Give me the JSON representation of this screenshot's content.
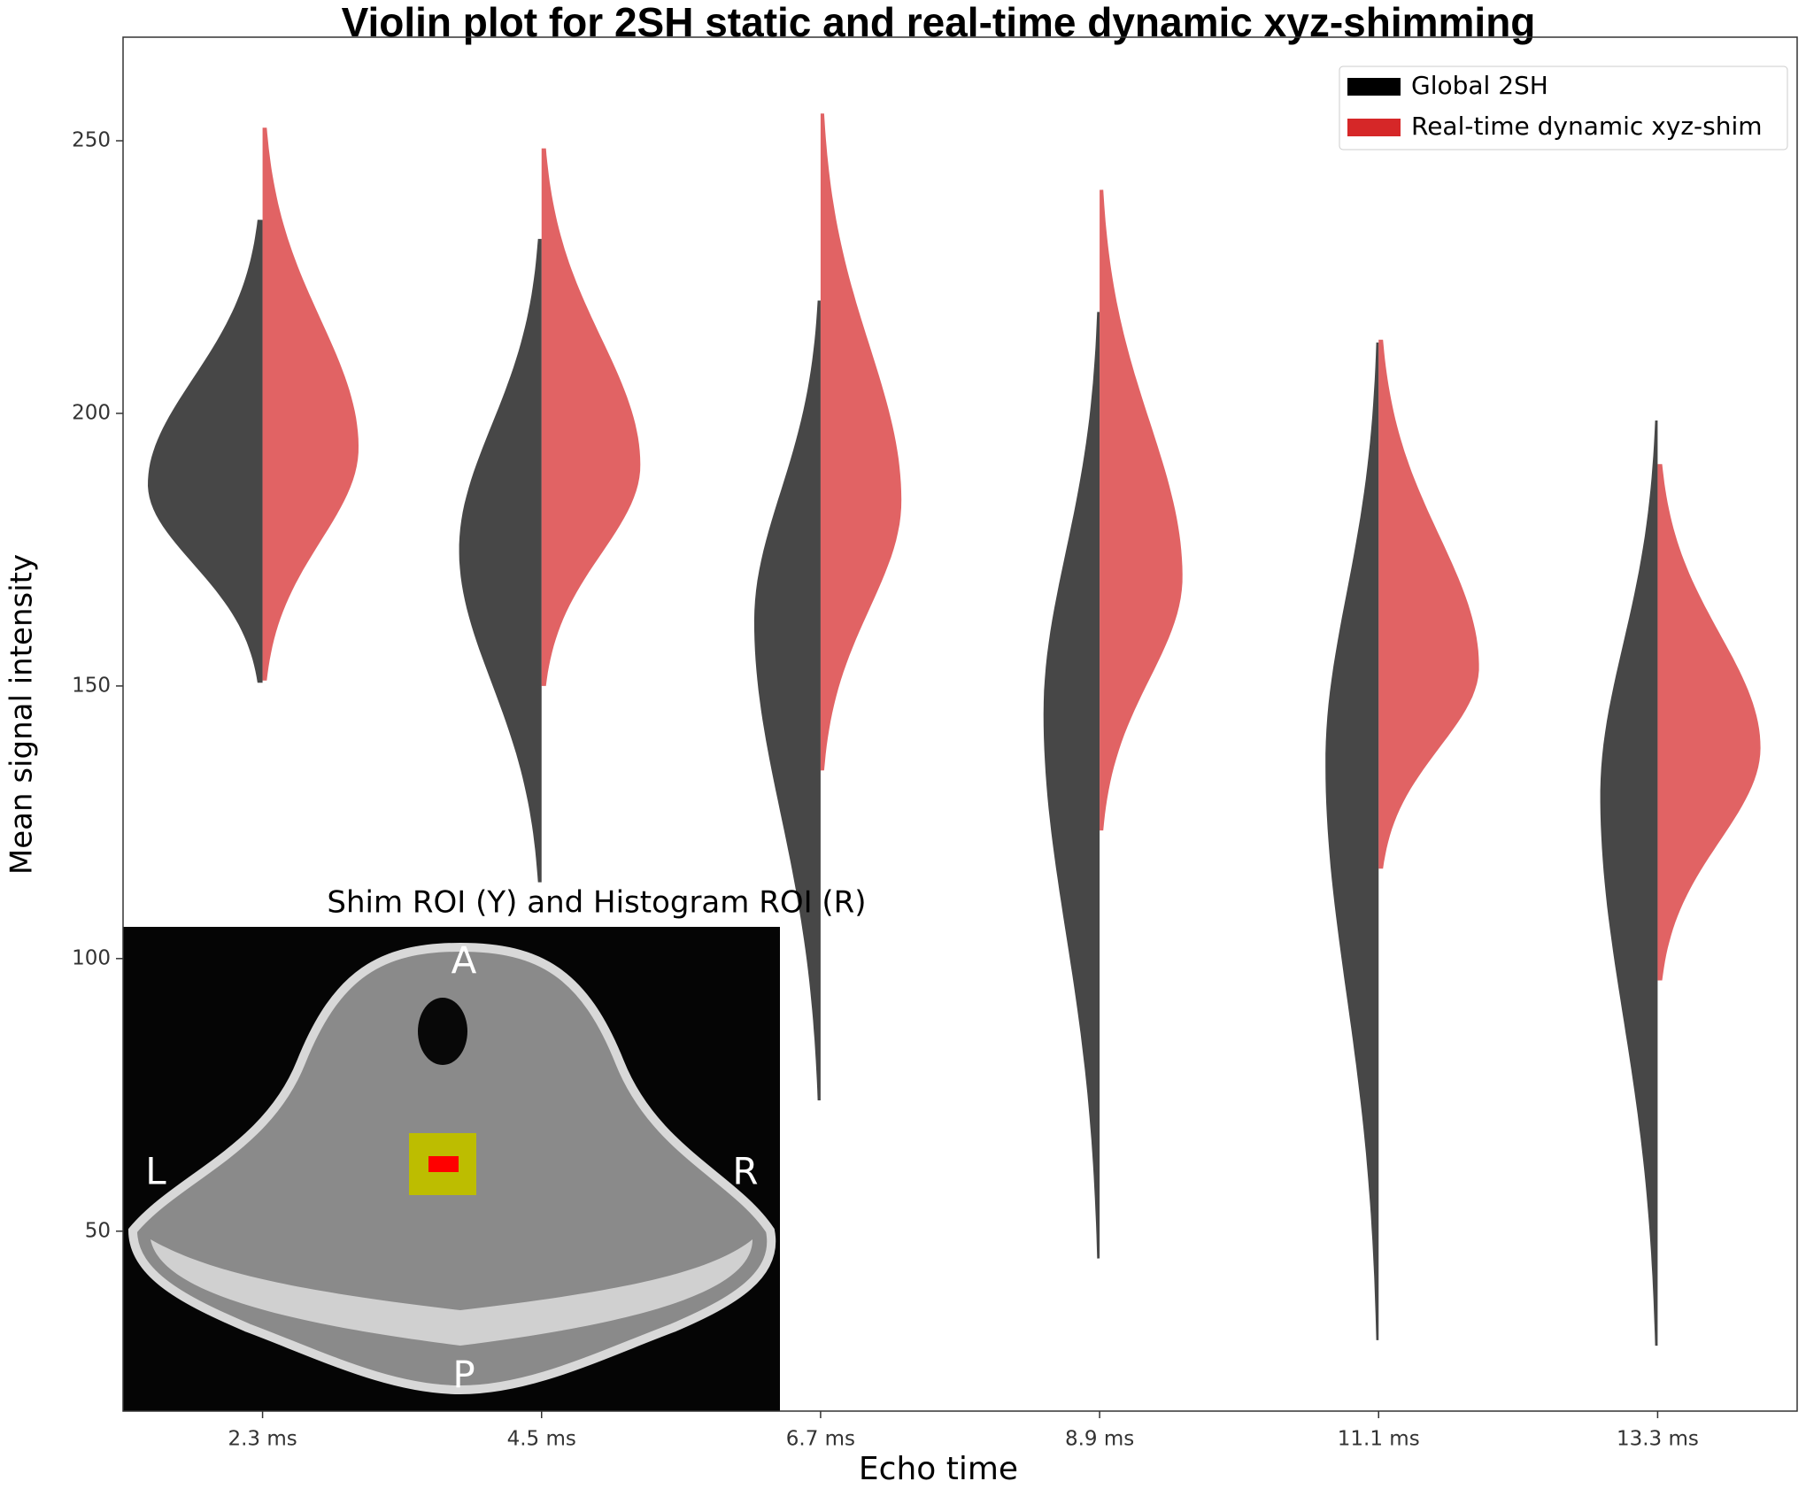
{
  "chart_data": {
    "type": "violin",
    "title": "Violin plot for 2SH static and real-time dynamic xyz-shimming",
    "x_label": "Echo time",
    "y_label": "Mean signal intensity",
    "categories": [
      "2.3 ms",
      "4.5 ms",
      "6.7 ms",
      "8.9 ms",
      "11.1 ms",
      "13.3 ms"
    ],
    "series": [
      {
        "name": "Global 2SH",
        "color": "#000000",
        "side": "left",
        "min": [
          150.6,
          114,
          74,
          45,
          30,
          29
        ],
        "mode": [
          187,
          175,
          162,
          145,
          136,
          130
        ],
        "max": [
          235.5,
          232,
          220.7,
          218.6,
          213,
          198.7
        ]
      },
      {
        "name": "Real-time dynamic xyz-shim",
        "color": "#d62728",
        "side": "right",
        "min": [
          151,
          150,
          134.5,
          123.5,
          116.5,
          96
        ],
        "mode": [
          193.7,
          190.5,
          184,
          170,
          153.5,
          138.7
        ],
        "max": [
          252.4,
          248.6,
          255,
          241,
          213.5,
          190.7
        ]
      }
    ],
    "ylim": [
      17,
      269
    ],
    "yticks": [
      50,
      100,
      150,
      200,
      250
    ],
    "grid": false,
    "legend": "upper right",
    "inset_title": "Shim ROI (Y) and Histogram ROI (R)",
    "inset_labels": [
      "A",
      "L",
      "R",
      "P"
    ]
  }
}
